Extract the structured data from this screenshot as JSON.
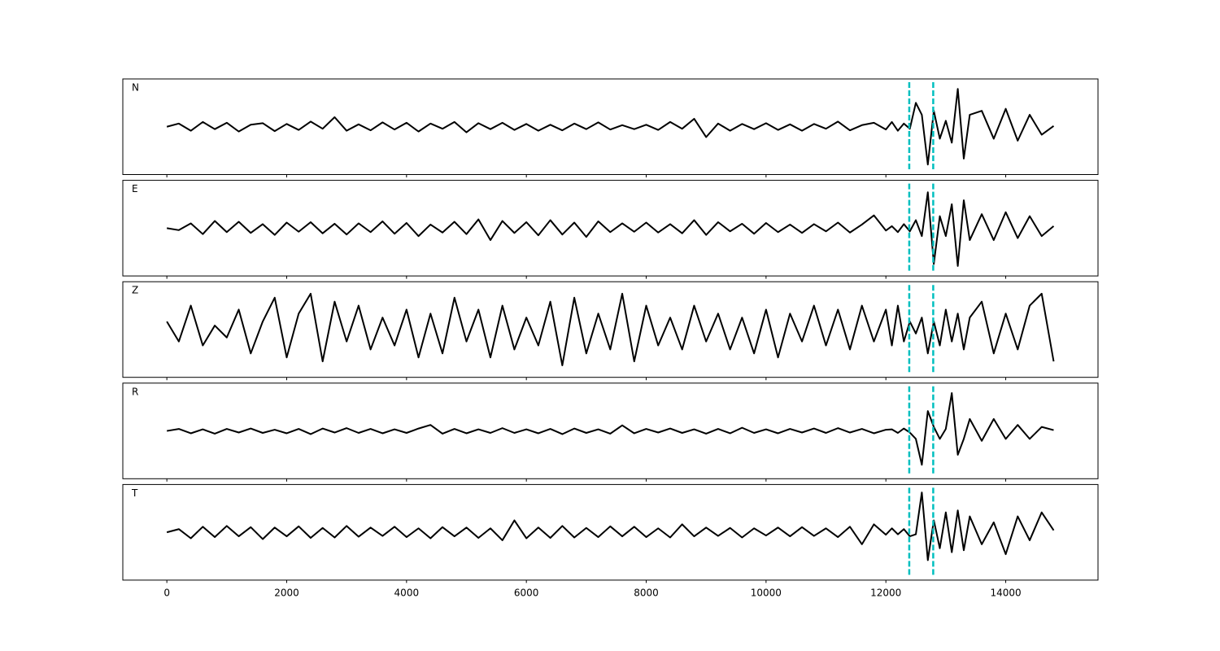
{
  "chart_data": [
    {
      "type": "line",
      "label": "N",
      "color": "#000000",
      "xlim": [
        -735,
        15540
      ],
      "ylim": [
        -1.2,
        1.2
      ],
      "vlines": [
        12390,
        12790
      ],
      "vline_color": "#00bfbf",
      "x": [
        0,
        200,
        400,
        600,
        800,
        1000,
        1200,
        1400,
        1600,
        1800,
        2000,
        2200,
        2400,
        2600,
        2800,
        3000,
        3200,
        3400,
        3600,
        3800,
        4000,
        4200,
        4400,
        4600,
        4800,
        5000,
        5200,
        5400,
        5600,
        5800,
        6000,
        6200,
        6400,
        6600,
        6800,
        7000,
        7200,
        7400,
        7600,
        7800,
        8000,
        8200,
        8400,
        8600,
        8800,
        9000,
        9200,
        9400,
        9600,
        9800,
        10000,
        10200,
        10400,
        10600,
        10800,
        11000,
        11200,
        11400,
        11600,
        11800,
        12000,
        12100,
        12200,
        12300,
        12400,
        12500,
        12600,
        12700,
        12800,
        12900,
        13000,
        13100,
        13200,
        13300,
        13400,
        13600,
        13800,
        14000,
        14200,
        14400,
        14600,
        14800
      ],
      "values": [
        0,
        0.08,
        -0.1,
        0.12,
        -0.06,
        0.1,
        -0.12,
        0.05,
        0.09,
        -0.11,
        0.07,
        -0.08,
        0.13,
        -0.05,
        0.24,
        -0.1,
        0.06,
        -0.09,
        0.11,
        -0.07,
        0.1,
        -0.12,
        0.08,
        -0.05,
        0.12,
        -0.14,
        0.09,
        -0.06,
        0.1,
        -0.08,
        0.07,
        -0.1,
        0.05,
        -0.09,
        0.08,
        -0.06,
        0.11,
        -0.07,
        0.04,
        -0.06,
        0.05,
        -0.08,
        0.12,
        -0.05,
        0.2,
        -0.26,
        0.08,
        -0.1,
        0.07,
        -0.06,
        0.09,
        -0.08,
        0.06,
        -0.1,
        0.07,
        -0.05,
        0.13,
        -0.09,
        0.04,
        0.1,
        -0.07,
        0.12,
        -0.1,
        0.08,
        -0.05,
        0.6,
        0.3,
        -0.95,
        0.4,
        -0.3,
        0.15,
        -0.4,
        0.95,
        -0.8,
        0.3,
        0.4,
        -0.3,
        0.45,
        -0.35,
        0.3,
        -0.2,
        0.02
      ]
    },
    {
      "type": "line",
      "label": "E",
      "color": "#000000",
      "xlim": [
        -735,
        15540
      ],
      "ylim": [
        -1.2,
        1.2
      ],
      "vlines": [
        12390,
        12790
      ],
      "vline_color": "#00bfbf",
      "x": [
        0,
        200,
        400,
        600,
        800,
        1000,
        1200,
        1400,
        1600,
        1800,
        2000,
        2200,
        2400,
        2600,
        2800,
        3000,
        3200,
        3400,
        3600,
        3800,
        4000,
        4200,
        4400,
        4600,
        4800,
        5000,
        5200,
        5400,
        5600,
        5800,
        6000,
        6200,
        6400,
        6600,
        6800,
        7000,
        7200,
        7400,
        7600,
        7800,
        8000,
        8200,
        8400,
        8600,
        8800,
        9000,
        9200,
        9400,
        9600,
        9800,
        10000,
        10200,
        10400,
        10600,
        10800,
        11000,
        11200,
        11400,
        11600,
        11800,
        12000,
        12100,
        12200,
        12300,
        12400,
        12500,
        12600,
        12700,
        12800,
        12900,
        13000,
        13100,
        13200,
        13300,
        13400,
        13600,
        13800,
        14000,
        14200,
        14400,
        14600,
        14800
      ],
      "values": [
        0,
        -0.05,
        0.12,
        -0.15,
        0.18,
        -0.1,
        0.16,
        -0.12,
        0.1,
        -0.17,
        0.14,
        -0.09,
        0.15,
        -0.13,
        0.11,
        -0.16,
        0.12,
        -0.1,
        0.17,
        -0.14,
        0.13,
        -0.2,
        0.09,
        -0.11,
        0.16,
        -0.15,
        0.22,
        -0.3,
        0.18,
        -0.12,
        0.15,
        -0.18,
        0.2,
        -0.16,
        0.14,
        -0.22,
        0.17,
        -0.1,
        0.12,
        -0.09,
        0.14,
        -0.11,
        0.1,
        -0.13,
        0.2,
        -0.17,
        0.15,
        -0.08,
        0.11,
        -0.14,
        0.13,
        -0.1,
        0.09,
        -0.12,
        0.1,
        -0.08,
        0.14,
        -0.11,
        0.09,
        0.32,
        -0.06,
        0.05,
        -0.1,
        0.1,
        -0.08,
        0.2,
        -0.2,
        0.9,
        -0.9,
        0.3,
        -0.2,
        0.6,
        -0.95,
        0.7,
        -0.3,
        0.35,
        -0.3,
        0.4,
        -0.25,
        0.3,
        -0.2,
        0.05
      ]
    },
    {
      "type": "line",
      "label": "Z",
      "color": "#000000",
      "xlim": [
        -735,
        15540
      ],
      "ylim": [
        -1.2,
        1.2
      ],
      "vlines": [
        12390,
        12790
      ],
      "vline_color": "#00bfbf",
      "x": [
        0,
        200,
        400,
        600,
        800,
        1000,
        1200,
        1400,
        1600,
        1800,
        2000,
        2200,
        2400,
        2600,
        2800,
        3000,
        3200,
        3400,
        3600,
        3800,
        4000,
        4200,
        4400,
        4600,
        4800,
        5000,
        5200,
        5400,
        5600,
        5800,
        6000,
        6200,
        6400,
        6600,
        6800,
        7000,
        7200,
        7400,
        7600,
        7800,
        8000,
        8200,
        8400,
        8600,
        8800,
        9000,
        9200,
        9400,
        9600,
        9800,
        10000,
        10200,
        10400,
        10600,
        10800,
        11000,
        11200,
        11400,
        11600,
        11800,
        12000,
        12100,
        12200,
        12300,
        12400,
        12500,
        12600,
        12700,
        12800,
        12900,
        13000,
        13100,
        13200,
        13300,
        13400,
        13600,
        13800,
        14000,
        14200,
        14400,
        14600,
        14800
      ],
      "values": [
        0.2,
        -0.3,
        0.6,
        -0.4,
        0.1,
        -0.2,
        0.5,
        -0.6,
        0.2,
        0.8,
        -0.7,
        0.4,
        0.9,
        -0.8,
        0.7,
        -0.3,
        0.6,
        -0.5,
        0.3,
        -0.4,
        0.5,
        -0.7,
        0.4,
        -0.6,
        0.8,
        -0.3,
        0.5,
        -0.7,
        0.6,
        -0.5,
        0.3,
        -0.4,
        0.7,
        -0.9,
        0.8,
        -0.6,
        0.4,
        -0.5,
        0.9,
        -0.8,
        0.6,
        -0.4,
        0.3,
        -0.5,
        0.6,
        -0.3,
        0.4,
        -0.5,
        0.3,
        -0.6,
        0.5,
        -0.7,
        0.4,
        -0.3,
        0.6,
        -0.4,
        0.5,
        -0.5,
        0.6,
        -0.3,
        0.5,
        -0.4,
        0.6,
        -0.3,
        0.2,
        -0.1,
        0.3,
        -0.6,
        0.2,
        -0.4,
        0.5,
        -0.3,
        0.4,
        -0.5,
        0.3,
        0.7,
        -0.6,
        0.4,
        -0.5,
        0.6,
        0.9,
        -0.8
      ]
    },
    {
      "type": "line",
      "label": "R",
      "color": "#000000",
      "xlim": [
        -735,
        15540
      ],
      "ylim": [
        -1.2,
        1.2
      ],
      "vlines": [
        12390,
        12790
      ],
      "vline_color": "#00bfbf",
      "x": [
        0,
        200,
        400,
        600,
        800,
        1000,
        1200,
        1400,
        1600,
        1800,
        2000,
        2200,
        2400,
        2600,
        2800,
        3000,
        3200,
        3400,
        3600,
        3800,
        4000,
        4200,
        4400,
        4600,
        4800,
        5000,
        5200,
        5400,
        5600,
        5800,
        6000,
        6200,
        6400,
        6600,
        6800,
        7000,
        7200,
        7400,
        7600,
        7800,
        8000,
        8200,
        8400,
        8600,
        8800,
        9000,
        9200,
        9400,
        9600,
        9800,
        10000,
        10200,
        10400,
        10600,
        10800,
        11000,
        11200,
        11400,
        11600,
        11800,
        12000,
        12100,
        12200,
        12300,
        12400,
        12500,
        12600,
        12700,
        12800,
        12900,
        13000,
        13100,
        13200,
        13300,
        13400,
        13600,
        13800,
        14000,
        14200,
        14400,
        14600,
        14800
      ],
      "values": [
        0,
        0.05,
        -0.06,
        0.04,
        -0.07,
        0.05,
        -0.04,
        0.06,
        -0.05,
        0.03,
        -0.06,
        0.05,
        -0.08,
        0.06,
        -0.04,
        0.07,
        -0.05,
        0.05,
        -0.06,
        0.04,
        -0.05,
        0.06,
        0.15,
        -0.07,
        0.05,
        -0.06,
        0.04,
        -0.05,
        0.07,
        -0.05,
        0.04,
        -0.06,
        0.05,
        -0.08,
        0.06,
        -0.05,
        0.04,
        -0.07,
        0.14,
        -0.06,
        0.05,
        -0.04,
        0.06,
        -0.05,
        0.04,
        -0.07,
        0.05,
        -0.06,
        0.08,
        -0.05,
        0.04,
        -0.06,
        0.05,
        -0.04,
        0.06,
        -0.05,
        0.07,
        -0.04,
        0.05,
        -0.06,
        0.03,
        0.04,
        -0.05,
        0.06,
        -0.04,
        -0.2,
        -0.85,
        0.5,
        0.1,
        -0.2,
        0.05,
        0.95,
        -0.6,
        -0.2,
        0.3,
        -0.25,
        0.3,
        -0.2,
        0.15,
        -0.2,
        0.1,
        0.02
      ]
    },
    {
      "type": "line",
      "label": "T",
      "color": "#000000",
      "xlim": [
        -735,
        15540
      ],
      "ylim": [
        -1.2,
        1.2
      ],
      "vlines": [
        12390,
        12790
      ],
      "vline_color": "#00bfbf",
      "xticks": [
        0,
        2000,
        4000,
        6000,
        8000,
        10000,
        12000,
        14000
      ],
      "x": [
        0,
        200,
        400,
        600,
        800,
        1000,
        1200,
        1400,
        1600,
        1800,
        2000,
        2200,
        2400,
        2600,
        2800,
        3000,
        3200,
        3400,
        3600,
        3800,
        4000,
        4200,
        4400,
        4600,
        4800,
        5000,
        5200,
        5400,
        5600,
        5800,
        6000,
        6200,
        6400,
        6600,
        6800,
        7000,
        7200,
        7400,
        7600,
        7800,
        8000,
        8200,
        8400,
        8600,
        8800,
        9000,
        9200,
        9400,
        9600,
        9800,
        10000,
        10200,
        10400,
        10600,
        10800,
        11000,
        11200,
        11400,
        11600,
        11800,
        12000,
        12100,
        12200,
        12300,
        12400,
        12500,
        12600,
        12700,
        12800,
        12900,
        13000,
        13100,
        13200,
        13300,
        13400,
        13600,
        13800,
        14000,
        14200,
        14400,
        14600,
        14800
      ],
      "values": [
        0,
        0.08,
        -0.15,
        0.14,
        -0.12,
        0.16,
        -0.1,
        0.13,
        -0.17,
        0.12,
        -0.1,
        0.15,
        -0.14,
        0.11,
        -0.13,
        0.16,
        -0.11,
        0.12,
        -0.09,
        0.14,
        -0.12,
        0.1,
        -0.15,
        0.13,
        -0.1,
        0.12,
        -0.14,
        0.1,
        -0.2,
        0.3,
        -0.15,
        0.12,
        -0.14,
        0.16,
        -0.13,
        0.11,
        -0.12,
        0.15,
        -0.1,
        0.14,
        -0.12,
        0.1,
        -0.13,
        0.2,
        -0.1,
        0.12,
        -0.09,
        0.11,
        -0.13,
        0.1,
        -0.08,
        0.12,
        -0.1,
        0.13,
        -0.09,
        0.1,
        -0.12,
        0.14,
        -0.3,
        0.2,
        -0.06,
        0.1,
        -0.05,
        0.08,
        -0.1,
        -0.05,
        1.0,
        -0.7,
        0.3,
        -0.4,
        0.5,
        -0.5,
        0.55,
        -0.45,
        0.4,
        -0.3,
        0.25,
        -0.55,
        0.4,
        -0.2,
        0.5,
        0.05
      ]
    }
  ]
}
